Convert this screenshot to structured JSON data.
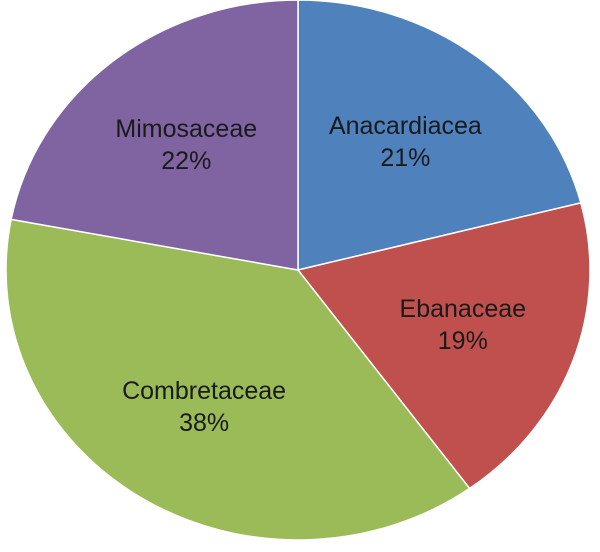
{
  "chart_data": {
    "type": "pie",
    "title": "",
    "start_angle_deg": 0,
    "direction": "clockwise",
    "legend": "none",
    "slices": [
      {
        "label": "Anacardiacea",
        "value": 21,
        "value_label": "21%",
        "color": "#4F81BD"
      },
      {
        "label": "Ebanaceae",
        "value": 19,
        "value_label": "19%",
        "color": "#C0504D"
      },
      {
        "label": "Combretaceae",
        "value": 38,
        "value_label": "38%",
        "color": "#9BBB59"
      },
      {
        "label": "Mimosaceae",
        "value": 22,
        "value_label": "22%",
        "color": "#8064A2"
      }
    ]
  }
}
